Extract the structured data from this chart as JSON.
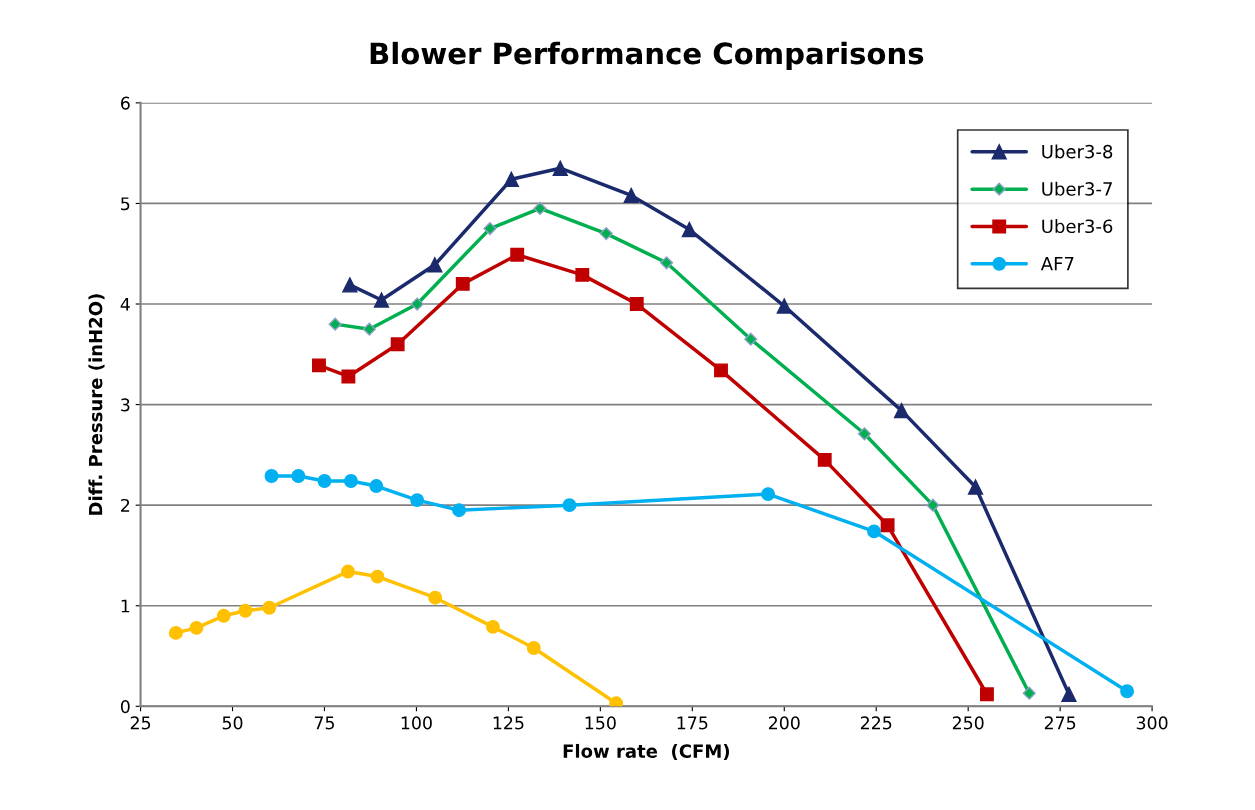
{
  "chart_data": {
    "type": "line",
    "title": "Blower Performance Comparisons",
    "xlabel": "Flow rate  (CFM)",
    "ylabel": "Diff. Pressure (inH2O)",
    "xlim": [
      25,
      300
    ],
    "xticks": [
      25,
      50,
      75,
      100,
      125,
      150,
      175,
      200,
      225,
      250,
      275,
      300
    ],
    "ylim": [
      0,
      6
    ],
    "yticks": [
      0,
      1,
      2,
      3,
      4,
      5,
      6
    ],
    "grid": "y",
    "legend": "top right",
    "series": [
      {
        "name": "Uber3-8",
        "color": "#1a2a6c",
        "marker": "triangle",
        "x": [
          81.9,
          90.5,
          105,
          125.8,
          139.1,
          158.4,
          174.2,
          200,
          231.9,
          252,
          277.4
        ],
        "values": [
          4.19,
          4.04,
          4.39,
          5.24,
          5.35,
          5.08,
          4.74,
          3.98,
          2.94,
          2.18,
          0.12
        ]
      },
      {
        "name": "Uber3-7",
        "color": "#00b050",
        "marker": "diamond",
        "x": [
          77.9,
          87.2,
          100.2,
          120,
          133.6,
          151.6,
          168,
          190.9,
          221.8,
          240.4,
          266.6
        ],
        "values": [
          3.8,
          3.75,
          4.0,
          4.75,
          4.95,
          4.7,
          4.41,
          3.65,
          2.71,
          2.0,
          0.13
        ]
      },
      {
        "name": "Uber3-6",
        "color": "#c00000",
        "marker": "square",
        "x": [
          73.5,
          81.5,
          94.9,
          112.6,
          127.4,
          145.1,
          159.9,
          182.8,
          211,
          228.1,
          255.1
        ],
        "values": [
          3.39,
          3.28,
          3.6,
          4.2,
          4.49,
          4.29,
          4.0,
          3.34,
          2.45,
          1.8,
          0.12
        ]
      },
      {
        "name": "AF7",
        "color": "#00b0f0",
        "marker": "circle",
        "x": [
          60.6,
          67.9,
          75,
          82.2,
          89.1,
          100.2,
          111.6,
          141.6,
          195.6,
          224.4,
          293.2
        ],
        "values": [
          2.29,
          2.29,
          2.24,
          2.24,
          2.19,
          2.05,
          1.95,
          2.0,
          2.11,
          1.74,
          0.15
        ]
      },
      {
        "color": "#ffc000",
        "marker": "circle",
        "x": [
          34.6,
          40.2,
          47.6,
          53.5,
          60,
          81.4,
          89.4,
          105.1,
          120.8,
          131.9,
          154.3
        ],
        "values": [
          0.73,
          0.78,
          0.9,
          0.95,
          0.98,
          1.34,
          1.29,
          1.08,
          0.79,
          0.58,
          0.03
        ]
      }
    ]
  }
}
